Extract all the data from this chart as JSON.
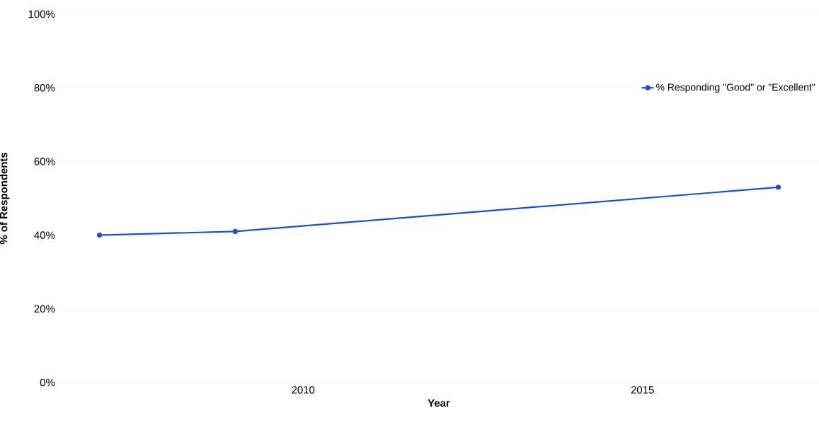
{
  "chart_data": {
    "type": "line",
    "xlabel": "Year",
    "ylabel": "% of Respondents",
    "x": [
      2007,
      2009,
      2017
    ],
    "series": [
      {
        "name": "% Responding \"Good\" or \"Excellent\"",
        "color": "#1f4fc8",
        "values": [
          40,
          41,
          53
        ]
      }
    ],
    "xlim": [
      2006.4,
      2017.6
    ],
    "xticks": [
      2010,
      2015
    ],
    "ylim": [
      0,
      100
    ],
    "yticks": [
      {
        "value": 0,
        "label": "0%"
      },
      {
        "value": 20,
        "label": "20%"
      },
      {
        "value": 40,
        "label": "40%"
      },
      {
        "value": 60,
        "label": "60%"
      },
      {
        "value": 80,
        "label": "80%"
      },
      {
        "value": 100,
        "label": "100%"
      }
    ],
    "grid": "y",
    "legend": "top right",
    "marker": "circle",
    "line_style": "solid"
  }
}
